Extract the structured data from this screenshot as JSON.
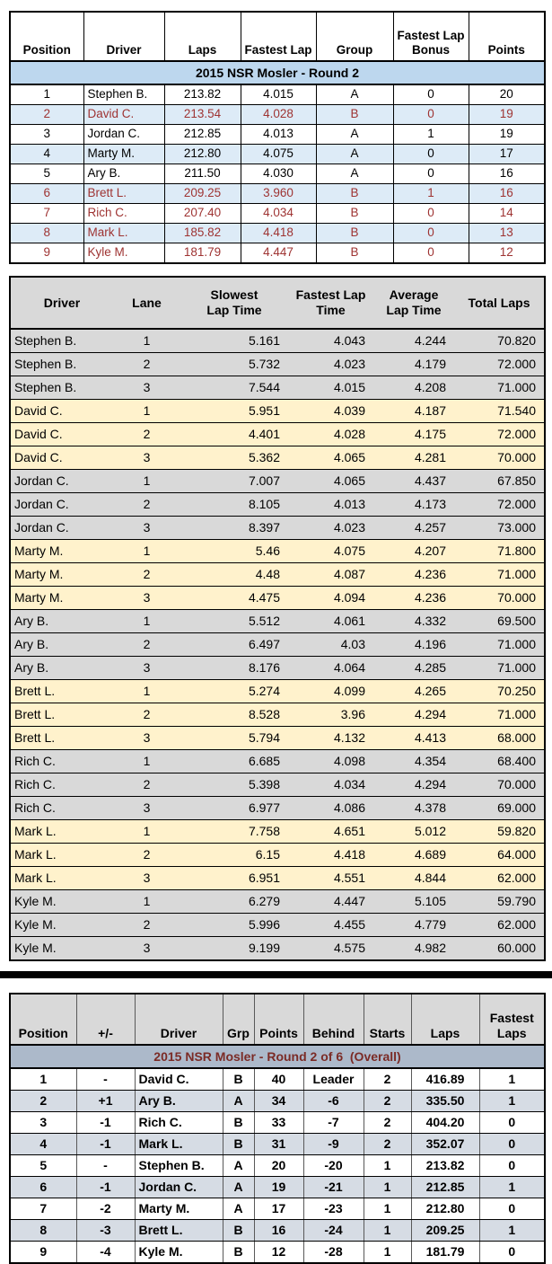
{
  "colors": {
    "table1_title_bg": "#BDD7EE",
    "table1_alt_row_bg": "#DDEBF7",
    "group_b_text": "#9E3332",
    "table2_grey_row_bg": "#D9D9D9",
    "table2_yellow_row_bg": "#FFF2CC",
    "table3_title_bg": "#ACB9CA",
    "table3_title_text": "#7B2B26",
    "table3_header_bg": "#D9D9D9",
    "table3_alt_row_bg": "#D6DCE4",
    "divider": "#000000"
  },
  "table1": {
    "title": "2015 NSR Mosler - Round 2",
    "headers": [
      "Position",
      "Driver",
      "Laps",
      "Fastest Lap",
      "Group",
      "Fastest Lap\nBonus",
      "Points"
    ],
    "rows": [
      [
        "1",
        "Stephen B.",
        "213.82",
        "4.015",
        "A",
        "0",
        "20"
      ],
      [
        "2",
        "David C.",
        "213.54",
        "4.028",
        "B",
        "0",
        "19"
      ],
      [
        "3",
        "Jordan C.",
        "212.85",
        "4.013",
        "A",
        "1",
        "19"
      ],
      [
        "4",
        "Marty M.",
        "212.80",
        "4.075",
        "A",
        "0",
        "17"
      ],
      [
        "5",
        "Ary B.",
        "211.50",
        "4.030",
        "A",
        "0",
        "16"
      ],
      [
        "6",
        "Brett L.",
        "209.25",
        "3.960",
        "B",
        "1",
        "16"
      ],
      [
        "7",
        "Rich C.",
        "207.40",
        "4.034",
        "B",
        "0",
        "14"
      ],
      [
        "8",
        "Mark L.",
        "185.82",
        "4.418",
        "B",
        "0",
        "13"
      ],
      [
        "9",
        "Kyle M.",
        "181.79",
        "4.447",
        "B",
        "0",
        "12"
      ]
    ]
  },
  "table2": {
    "headers": [
      "Driver",
      "Lane",
      "Slowest\nLap Time",
      "Fastest Lap\nTime",
      "Average\nLap Time",
      "Total Laps"
    ],
    "rows": [
      [
        "Stephen B.",
        "1",
        "5.161",
        "4.043",
        "4.244",
        "70.820"
      ],
      [
        "Stephen B.",
        "2",
        "5.732",
        "4.023",
        "4.179",
        "72.000"
      ],
      [
        "Stephen B.",
        "3",
        "7.544",
        "4.015",
        "4.208",
        "71.000"
      ],
      [
        "David C.",
        "1",
        "5.951",
        "4.039",
        "4.187",
        "71.540"
      ],
      [
        "David C.",
        "2",
        "4.401",
        "4.028",
        "4.175",
        "72.000"
      ],
      [
        "David C.",
        "3",
        "5.362",
        "4.065",
        "4.281",
        "70.000"
      ],
      [
        "Jordan C.",
        "1",
        "7.007",
        "4.065",
        "4.437",
        "67.850"
      ],
      [
        "Jordan C.",
        "2",
        "8.105",
        "4.013",
        "4.173",
        "72.000"
      ],
      [
        "Jordan C.",
        "3",
        "8.397",
        "4.023",
        "4.257",
        "73.000"
      ],
      [
        "Marty M.",
        "1",
        "5.46",
        "4.075",
        "4.207",
        "71.800"
      ],
      [
        "Marty M.",
        "2",
        "4.48",
        "4.087",
        "4.236",
        "71.000"
      ],
      [
        "Marty M.",
        "3",
        "4.475",
        "4.094",
        "4.236",
        "70.000"
      ],
      [
        "Ary B.",
        "1",
        "5.512",
        "4.061",
        "4.332",
        "69.500"
      ],
      [
        "Ary B.",
        "2",
        "6.497",
        "4.03",
        "4.196",
        "71.000"
      ],
      [
        "Ary B.",
        "3",
        "8.176",
        "4.064",
        "4.285",
        "71.000"
      ],
      [
        "Brett L.",
        "1",
        "5.274",
        "4.099",
        "4.265",
        "70.250"
      ],
      [
        "Brett L.",
        "2",
        "8.528",
        "3.96",
        "4.294",
        "71.000"
      ],
      [
        "Brett L.",
        "3",
        "5.794",
        "4.132",
        "4.413",
        "68.000"
      ],
      [
        "Rich C.",
        "1",
        "6.685",
        "4.098",
        "4.354",
        "68.400"
      ],
      [
        "Rich C.",
        "2",
        "5.398",
        "4.034",
        "4.294",
        "70.000"
      ],
      [
        "Rich C.",
        "3",
        "6.977",
        "4.086",
        "4.378",
        "69.000"
      ],
      [
        "Mark L.",
        "1",
        "7.758",
        "4.651",
        "5.012",
        "59.820"
      ],
      [
        "Mark L.",
        "2",
        "6.15",
        "4.418",
        "4.689",
        "64.000"
      ],
      [
        "Mark L.",
        "3",
        "6.951",
        "4.551",
        "4.844",
        "62.000"
      ],
      [
        "Kyle M.",
        "1",
        "6.279",
        "4.447",
        "5.105",
        "59.790"
      ],
      [
        "Kyle M.",
        "2",
        "5.996",
        "4.455",
        "4.779",
        "62.000"
      ],
      [
        "Kyle M.",
        "3",
        "9.199",
        "4.575",
        "4.982",
        "60.000"
      ]
    ]
  },
  "table3": {
    "title": "2015 NSR Mosler - Round 2 of 6  (Overall)",
    "headers": [
      "Position",
      "+/-",
      "Driver",
      "Grp",
      "Points",
      "Behind",
      "Starts",
      "Laps",
      "Fastest\nLaps"
    ],
    "rows": [
      [
        "1",
        "-",
        "David C.",
        "B",
        "40",
        "Leader",
        "2",
        "416.89",
        "1"
      ],
      [
        "2",
        "+1",
        "Ary B.",
        "A",
        "34",
        "-6",
        "2",
        "335.50",
        "1"
      ],
      [
        "3",
        "-1",
        "Rich C.",
        "B",
        "33",
        "-7",
        "2",
        "404.20",
        "0"
      ],
      [
        "4",
        "-1",
        "Mark L.",
        "B",
        "31",
        "-9",
        "2",
        "352.07",
        "0"
      ],
      [
        "5",
        "-",
        "Stephen B.",
        "A",
        "20",
        "-20",
        "1",
        "213.82",
        "0"
      ],
      [
        "6",
        "-1",
        "Jordan C.",
        "A",
        "19",
        "-21",
        "1",
        "212.85",
        "1"
      ],
      [
        "7",
        "-2",
        "Marty M.",
        "A",
        "17",
        "-23",
        "1",
        "212.80",
        "0"
      ],
      [
        "8",
        "-3",
        "Brett L.",
        "B",
        "16",
        "-24",
        "1",
        "209.25",
        "1"
      ],
      [
        "9",
        "-4",
        "Kyle M.",
        "B",
        "12",
        "-28",
        "1",
        "181.79",
        "0"
      ]
    ]
  }
}
